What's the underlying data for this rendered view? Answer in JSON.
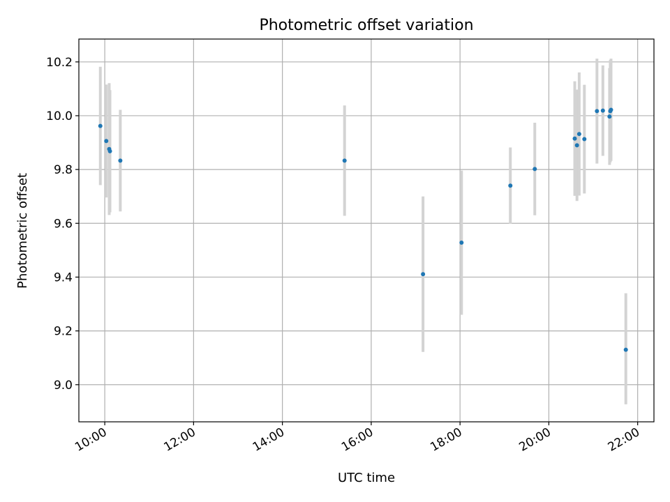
{
  "chart_data": {
    "type": "scatter",
    "title": "Photometric offset variation",
    "xlabel": "UTC time",
    "ylabel": "Photometric offset",
    "x_ticks": [
      "10:00",
      "12:00",
      "14:00",
      "16:00",
      "18:00",
      "20:00",
      "22:00"
    ],
    "y_ticks": [
      "9.0",
      "9.2",
      "9.4",
      "9.6",
      "9.8",
      "10.0",
      "10.2"
    ],
    "xlim": [
      "09:25",
      "22:22"
    ],
    "ylim": [
      8.862,
      10.285
    ],
    "grid": true,
    "colors": {
      "point": "#1f77b4",
      "errorbar": "#d3d3d3"
    },
    "series": [
      {
        "points": [
          {
            "x": "09:54",
            "y": 9.962,
            "ylow": 9.742,
            "yhigh": 10.182
          },
          {
            "x": "10:02",
            "y": 9.906,
            "ylow": 9.696,
            "yhigh": 10.116
          },
          {
            "x": "10:06",
            "y": 9.876,
            "ylow": 9.631,
            "yhigh": 10.121
          },
          {
            "x": "10:07",
            "y": 9.868,
            "ylow": 9.641,
            "yhigh": 10.095
          },
          {
            "x": "10:21",
            "y": 9.833,
            "ylow": 9.644,
            "yhigh": 10.022
          },
          {
            "x": "15:24",
            "y": 9.833,
            "ylow": 9.628,
            "yhigh": 10.038
          },
          {
            "x": "17:10",
            "y": 9.411,
            "ylow": 9.122,
            "yhigh": 9.7
          },
          {
            "x": "18:02",
            "y": 9.528,
            "ylow": 9.26,
            "yhigh": 9.796
          },
          {
            "x": "19:08",
            "y": 9.74,
            "ylow": 9.598,
            "yhigh": 9.882
          },
          {
            "x": "19:41",
            "y": 9.802,
            "ylow": 9.63,
            "yhigh": 9.974
          },
          {
            "x": "20:35",
            "y": 9.915,
            "ylow": 9.702,
            "yhigh": 10.128
          },
          {
            "x": "20:38",
            "y": 9.89,
            "ylow": 9.683,
            "yhigh": 10.097
          },
          {
            "x": "20:41",
            "y": 9.932,
            "ylow": 9.703,
            "yhigh": 10.161
          },
          {
            "x": "20:48",
            "y": 9.913,
            "ylow": 9.711,
            "yhigh": 10.115
          },
          {
            "x": "21:05",
            "y": 10.017,
            "ylow": 9.822,
            "yhigh": 10.212
          },
          {
            "x": "21:13",
            "y": 10.019,
            "ylow": 9.851,
            "yhigh": 10.187
          },
          {
            "x": "21:22",
            "y": 9.997,
            "ylow": 9.817,
            "yhigh": 10.177
          },
          {
            "x": "21:23",
            "y": 10.017,
            "ylow": 9.827,
            "yhigh": 10.207
          },
          {
            "x": "21:24",
            "y": 10.022,
            "ylow": 9.832,
            "yhigh": 10.212
          },
          {
            "x": "21:44",
            "y": 9.13,
            "ylow": 8.927,
            "yhigh": 9.34
          }
        ]
      }
    ]
  }
}
